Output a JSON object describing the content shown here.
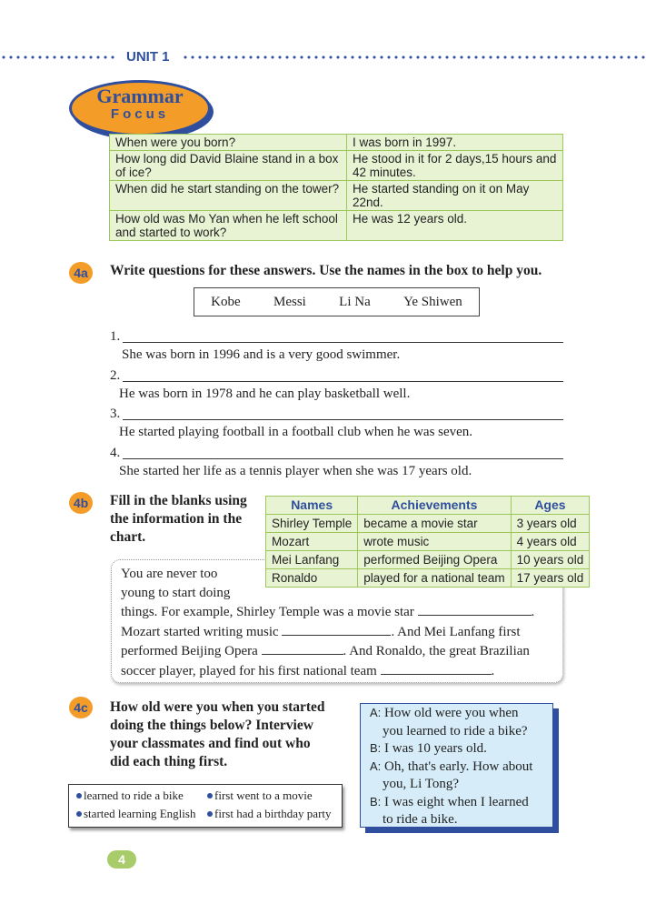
{
  "header": {
    "unit": "UNIT 1"
  },
  "grammar_focus": {
    "title_line1": "Grammar",
    "title_line2": "Focus",
    "rows": [
      [
        "When were you born?",
        "I was born in 1997."
      ],
      [
        "How long did David Blaine stand in a box of ice?",
        "He stood in it for 2 days,15 hours and 42 minutes."
      ],
      [
        "When did he start standing on the tower?",
        "He started standing on it on May 22nd."
      ],
      [
        "How old was Mo Yan when he left school and started to work?",
        "He was 12 years old."
      ]
    ]
  },
  "ex4a": {
    "badge": "4a",
    "instruction": "Write questions for these answers. Use the names in the box to help you.",
    "names": [
      "Kobe",
      "Messi",
      "Li Na",
      "Ye Shiwen"
    ],
    "items": [
      {
        "num": "1.",
        "answer": "She was born in 1996 and is a very good swimmer."
      },
      {
        "num": "2.",
        "answer": "He was born in 1978 and he can play basketball well."
      },
      {
        "num": "3.",
        "answer": "He started playing football in a football club when he was seven."
      },
      {
        "num": "4.",
        "answer": "She started her life as a tennis player when she was 17 years old."
      }
    ]
  },
  "ex4b": {
    "badge": "4b",
    "instruction": "Fill in the blanks using the information in the chart.",
    "headers": [
      "Names",
      "Achievements",
      "Ages"
    ],
    "rows": [
      [
        "Shirley Temple",
        "became a movie star",
        "3 years old"
      ],
      [
        "Mozart",
        "wrote music",
        "4 years old"
      ],
      [
        "Mei Lanfang",
        "performed Beijing Opera",
        "10 years old"
      ],
      [
        "Ronaldo",
        "played for a national team",
        "17 years old"
      ]
    ],
    "para": {
      "l1": "You are never too",
      "l2": "young to start doing",
      "l3": "things. For example, Shirley Temple was a movie star",
      "l4a": "Mozart started writing music",
      "l4b": ". And Mei Lanfang first",
      "l5a": "performed Beijing Opera",
      "l5b": ". And Ronaldo, the great Brazilian",
      "l6": "soccer player, played for his first national team"
    }
  },
  "ex4c": {
    "badge": "4c",
    "instruction": "How old were you when you started doing the things below? Interview your classmates and find out who did each thing first.",
    "bullets": [
      "learned to ride a bike",
      "first went to a movie",
      "started learning English",
      "first had a birthday party"
    ],
    "dialogue": [
      {
        "speaker": "A:",
        "text": "How old were you when",
        "cont": "you learned to ride a bike?"
      },
      {
        "speaker": "B:",
        "text": "I was 10 years old.",
        "cont": ""
      },
      {
        "speaker": "A:",
        "text": "Oh, that's early. How about",
        "cont": "you, Li Tong?"
      },
      {
        "speaker": "B:",
        "text": "I was eight when I learned",
        "cont": "to ride a bike."
      }
    ]
  },
  "footer": {
    "page_number": "4"
  },
  "colors": {
    "blue": "#2f4f9e",
    "orange": "#f39c28",
    "green": "#9cc85a",
    "light_blue": "#d6edf9"
  }
}
